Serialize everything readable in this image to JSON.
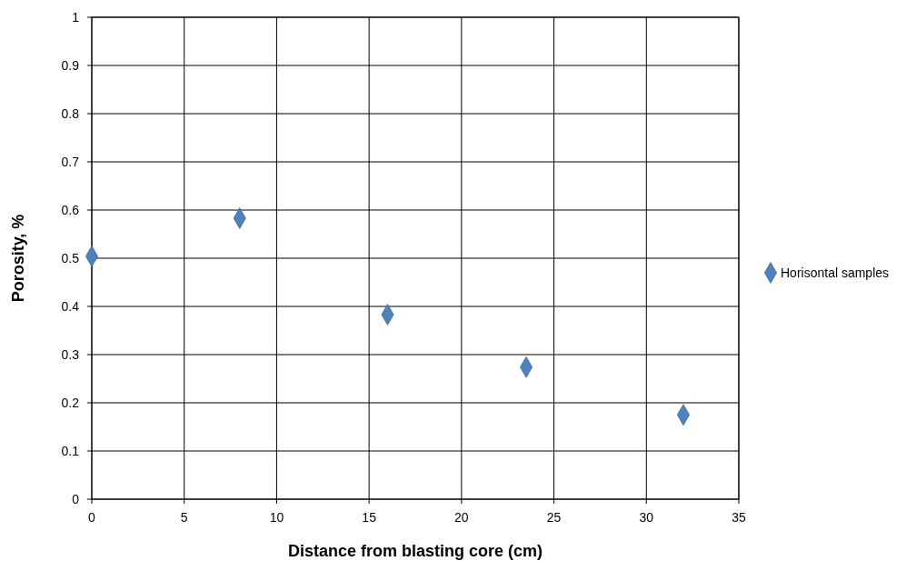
{
  "chart_data": {
    "type": "scatter",
    "xlabel": "Distance from blasting core (cm)",
    "ylabel": "Porosity, %",
    "x": [
      0,
      8,
      16,
      23.5,
      32
    ],
    "series": [
      {
        "name": "Horisontal samples",
        "color": "#4f81bd",
        "values": [
          0.504,
          0.583,
          0.383,
          0.274,
          0.175
        ]
      }
    ],
    "xlim": [
      0,
      35
    ],
    "xticks": [
      0,
      5,
      10,
      15,
      20,
      25,
      30,
      35
    ],
    "ylim": [
      0,
      1
    ],
    "yticks": [
      0,
      0.1,
      0.2,
      0.3,
      0.4,
      0.5,
      0.6,
      0.7,
      0.8,
      0.9,
      1
    ],
    "grid": true,
    "legend": "right",
    "marker": "diamond"
  }
}
